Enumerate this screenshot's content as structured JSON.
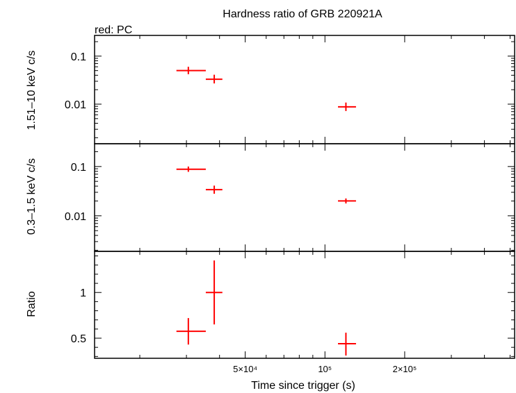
{
  "chart_data": {
    "type": "scatter",
    "title": "Hardness ratio of GRB 220921A",
    "subtitle": "red: PC",
    "xlabel": "Time since trigger (s)",
    "x_scale": "log",
    "xlim": [
      13500,
      520000
    ],
    "x_ticks": [
      {
        "value": 50000,
        "label": "5×10⁴"
      },
      {
        "value": 100000,
        "label": "10⁵"
      },
      {
        "value": 200000,
        "label": "2×10⁵"
      }
    ],
    "series_color": "#ff0000",
    "panels": [
      {
        "ylabel": "1.51–10 keV c/s",
        "y_scale": "log",
        "ylim": [
          0.0015,
          0.27
        ],
        "y_ticks": [
          {
            "value": 0.1,
            "label": "0.1"
          },
          {
            "value": 0.01,
            "label": "0.01"
          }
        ],
        "points": [
          {
            "x": 30500,
            "xlo": 27500,
            "xhi": 35500,
            "y": 0.05,
            "ylo": 0.042,
            "yhi": 0.06
          },
          {
            "x": 38200,
            "xlo": 35500,
            "xhi": 41000,
            "y": 0.033,
            "ylo": 0.027,
            "yhi": 0.041
          },
          {
            "x": 120000,
            "xlo": 112000,
            "xhi": 131000,
            "y": 0.0088,
            "ylo": 0.0072,
            "yhi": 0.0108
          }
        ]
      },
      {
        "ylabel": "0.3–1.5 keV c/s",
        "y_scale": "log",
        "ylim": [
          0.0019,
          0.29
        ],
        "y_ticks": [
          {
            "value": 0.1,
            "label": "0.1"
          },
          {
            "value": 0.01,
            "label": "0.01"
          }
        ],
        "points": [
          {
            "x": 30500,
            "xlo": 27500,
            "xhi": 35500,
            "y": 0.088,
            "ylo": 0.078,
            "yhi": 0.1
          },
          {
            "x": 38200,
            "xlo": 35500,
            "xhi": 41000,
            "y": 0.034,
            "ylo": 0.028,
            "yhi": 0.041
          },
          {
            "x": 120000,
            "xlo": 112000,
            "xhi": 131000,
            "y": 0.02,
            "ylo": 0.0178,
            "yhi": 0.0225
          }
        ]
      },
      {
        "ylabel": "Ratio",
        "y_scale": "linear",
        "ylim": [
          0.28,
          1.45
        ],
        "y_ticks": [
          {
            "value": 1,
            "label": "1"
          },
          {
            "value": 0.5,
            "label": "0.5"
          }
        ],
        "points": [
          {
            "x": 30500,
            "xlo": 27500,
            "xhi": 35500,
            "y": 0.575,
            "ylo": 0.43,
            "yhi": 0.72
          },
          {
            "x": 38200,
            "xlo": 35500,
            "xhi": 41000,
            "y": 1.0,
            "ylo": 0.65,
            "yhi": 1.35
          },
          {
            "x": 120000,
            "xlo": 112000,
            "xhi": 131000,
            "y": 0.44,
            "ylo": 0.31,
            "yhi": 0.56
          }
        ]
      }
    ]
  }
}
